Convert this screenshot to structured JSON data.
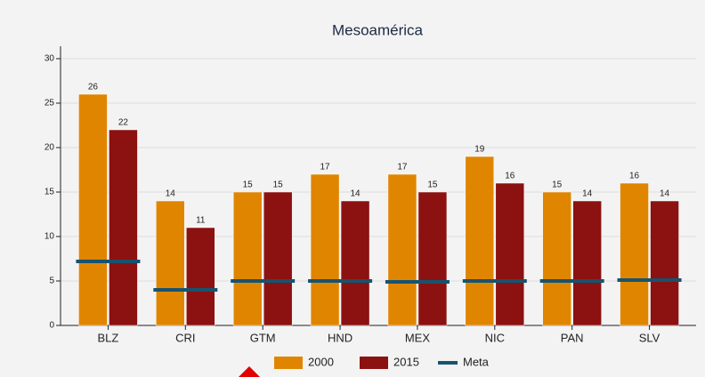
{
  "chart_data": {
    "type": "bar",
    "title": "Mesoamérica",
    "categories": [
      "BLZ",
      "CRI",
      "GTM",
      "HND",
      "MEX",
      "NIC",
      "PAN",
      "SLV"
    ],
    "series": [
      {
        "name": "2000",
        "color": "#e08500",
        "values": [
          26,
          14,
          15,
          17,
          17,
          19,
          15,
          16
        ]
      },
      {
        "name": "2015",
        "color": "#8c1111",
        "values": [
          22,
          11,
          15,
          14,
          15,
          16,
          14,
          14
        ]
      }
    ],
    "target": {
      "name": "Meta",
      "color": "#17536f",
      "values": [
        7.2,
        4,
        5,
        5,
        4.9,
        5,
        5,
        5.1
      ]
    },
    "ylim": [
      0,
      30
    ],
    "yticks": [
      0,
      5,
      10,
      15,
      20,
      25,
      30
    ],
    "grid": true
  }
}
